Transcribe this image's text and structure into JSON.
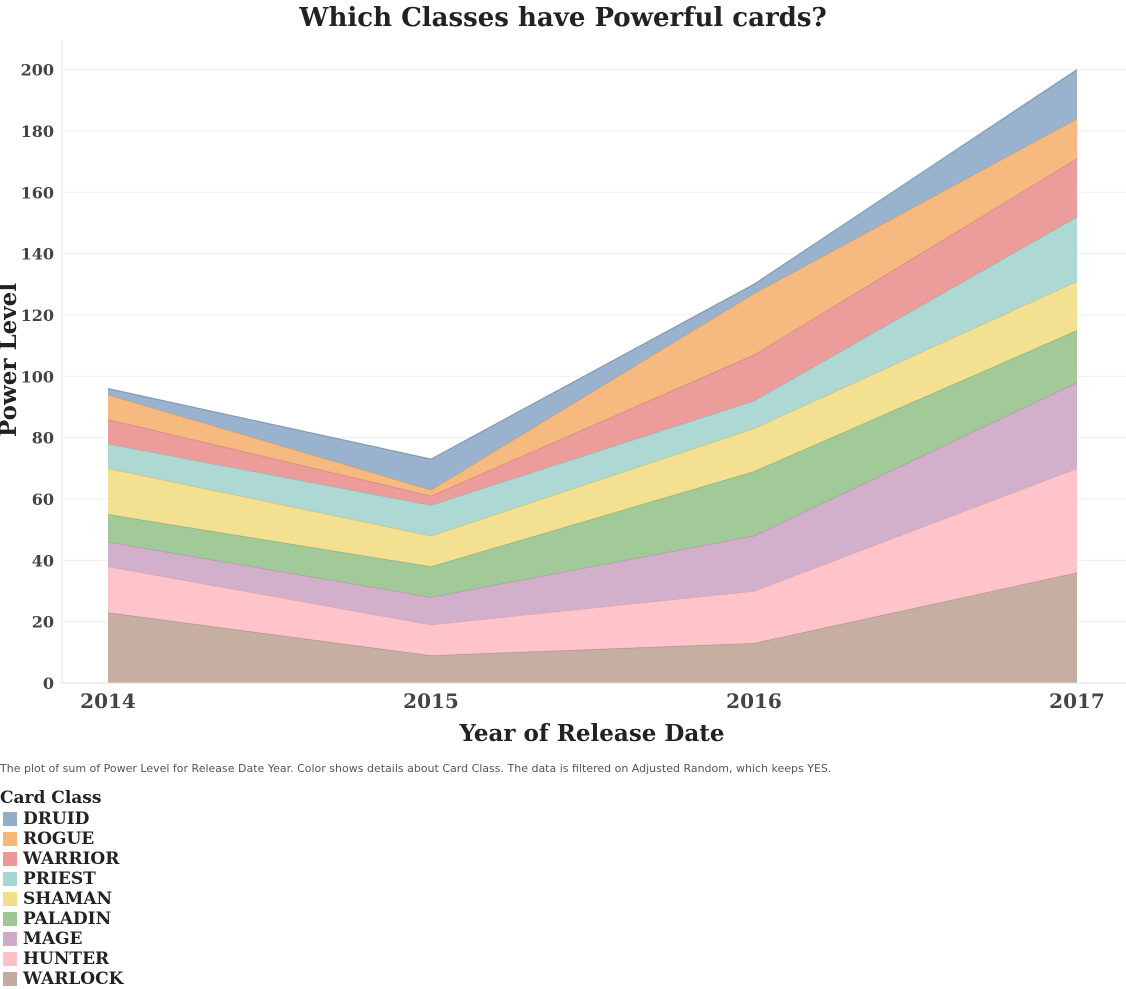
{
  "chart_data": {
    "type": "area",
    "stacked": true,
    "title": "Which Classes have Powerful cards?",
    "xlabel": "Year of Release Date",
    "ylabel": "Power Level",
    "x": [
      "2014",
      "2015",
      "2016",
      "2017"
    ],
    "ylim": [
      0,
      210
    ],
    "yticks": [
      0,
      20,
      40,
      60,
      80,
      100,
      120,
      140,
      160,
      180,
      200
    ],
    "grid": true,
    "legend_position": "bottom-left",
    "series": [
      {
        "name": "WARLOCK",
        "color": "#c4aa9e",
        "values": [
          23,
          9,
          13,
          36
        ]
      },
      {
        "name": "HUNTER",
        "color": "#fec1c7",
        "values": [
          15,
          10,
          17,
          34
        ]
      },
      {
        "name": "MAGE",
        "color": "#d0abc8",
        "values": [
          8,
          9,
          18,
          28
        ]
      },
      {
        "name": "PALADIN",
        "color": "#9dc793",
        "values": [
          9,
          10,
          21,
          17
        ]
      },
      {
        "name": "SHAMAN",
        "color": "#f2de8b",
        "values": [
          15,
          10,
          14,
          16
        ]
      },
      {
        "name": "PRIEST",
        "color": "#a9d6d1",
        "values": [
          8,
          10,
          9,
          21
        ]
      },
      {
        "name": "WARRIOR",
        "color": "#eb9796",
        "values": [
          8,
          3,
          15,
          19
        ]
      },
      {
        "name": "ROGUE",
        "color": "#f5b679",
        "values": [
          8,
          2,
          20,
          13
        ]
      },
      {
        "name": "DRUID",
        "color": "#93aecb",
        "values": [
          2,
          10,
          3,
          16
        ]
      }
    ]
  },
  "caption": "The plot of sum of Power Level for Release Date Year.  Color shows details about Card Class. The data is filtered on Adjusted Random, which keeps YES.",
  "legend": {
    "title": "Card Class",
    "items": [
      {
        "label": "DRUID",
        "color": "#93aecb"
      },
      {
        "label": "ROGUE",
        "color": "#f5b679"
      },
      {
        "label": "WARRIOR",
        "color": "#eb9796"
      },
      {
        "label": "PRIEST",
        "color": "#a9d6d1"
      },
      {
        "label": "SHAMAN",
        "color": "#f2de8b"
      },
      {
        "label": "PALADIN",
        "color": "#9dc793"
      },
      {
        "label": "MAGE",
        "color": "#d0abc8"
      },
      {
        "label": "HUNTER",
        "color": "#fec1c7"
      },
      {
        "label": "WARLOCK",
        "color": "#c4aa9e"
      }
    ]
  }
}
